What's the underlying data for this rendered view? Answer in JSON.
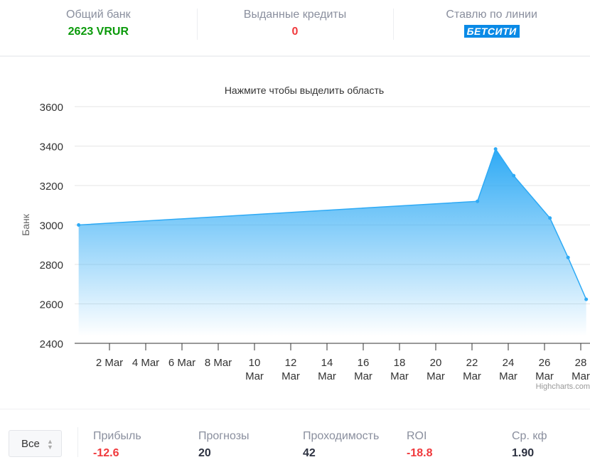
{
  "header": {
    "bank": {
      "label": "Общий банк",
      "value": "2623 VRUR",
      "color": "#0a9a0a"
    },
    "credits": {
      "label": "Выданные кредиты",
      "value": "0",
      "color": "#f0393c"
    },
    "line": {
      "label": "Ставлю по линии",
      "logo": "БЕТСИТИ",
      "logo_color": "#0a8ae6"
    }
  },
  "chart_data": {
    "type": "area",
    "title": "Нажмите чтобы выделить область",
    "ylabel": "Банк",
    "xlabel": "",
    "ylim": [
      2400,
      3600
    ],
    "yticks": [
      2400,
      2600,
      2800,
      3000,
      3200,
      3400,
      3600
    ],
    "xticks": [
      {
        "day": 2,
        "label": [
          "2 Mar"
        ]
      },
      {
        "day": 4,
        "label": [
          "4 Mar"
        ]
      },
      {
        "day": 6,
        "label": [
          "6 Mar"
        ]
      },
      {
        "day": 8,
        "label": [
          "8 Mar"
        ]
      },
      {
        "day": 10,
        "label": [
          "10",
          "Mar"
        ]
      },
      {
        "day": 12,
        "label": [
          "12",
          "Mar"
        ]
      },
      {
        "day": 14,
        "label": [
          "14",
          "Mar"
        ]
      },
      {
        "day": 16,
        "label": [
          "16",
          "Mar"
        ]
      },
      {
        "day": 18,
        "label": [
          "18",
          "Mar"
        ]
      },
      {
        "day": 20,
        "label": [
          "20",
          "Mar"
        ]
      },
      {
        "day": 22,
        "label": [
          "22",
          "Mar"
        ]
      },
      {
        "day": 24,
        "label": [
          "24",
          "Mar"
        ]
      },
      {
        "day": 26,
        "label": [
          "26",
          "Mar"
        ]
      },
      {
        "day": 28,
        "label": [
          "28",
          "Mar"
        ]
      }
    ],
    "points": [
      {
        "date": "Feb 29",
        "day": 0,
        "value": 3000
      },
      {
        "date": "Mar 22",
        "day": 22,
        "value": 3120
      },
      {
        "date": "Mar 23",
        "day": 23,
        "value": 3385
      },
      {
        "date": "Mar 24",
        "day": 24,
        "value": 3250
      },
      {
        "date": "Mar 26",
        "day": 26,
        "value": 3035
      },
      {
        "date": "Mar 27",
        "day": 27,
        "value": 2835
      },
      {
        "date": "Mar 28",
        "day": 28,
        "value": 2623
      }
    ],
    "color": "#2eaaf5",
    "grid": true,
    "legend": false,
    "credits": "Highcharts.com"
  },
  "footer": {
    "filter": "Все",
    "stats": [
      {
        "label": "Прибыль",
        "value": "-12.6",
        "negative": true
      },
      {
        "label": "Прогнозы",
        "value": "20",
        "negative": false
      },
      {
        "label": "Проходимость",
        "value": "42",
        "negative": false
      },
      {
        "label": "ROI",
        "value": "-18.8",
        "negative": true
      },
      {
        "label": "Ср. кф",
        "value": "1.90",
        "negative": false
      }
    ]
  }
}
